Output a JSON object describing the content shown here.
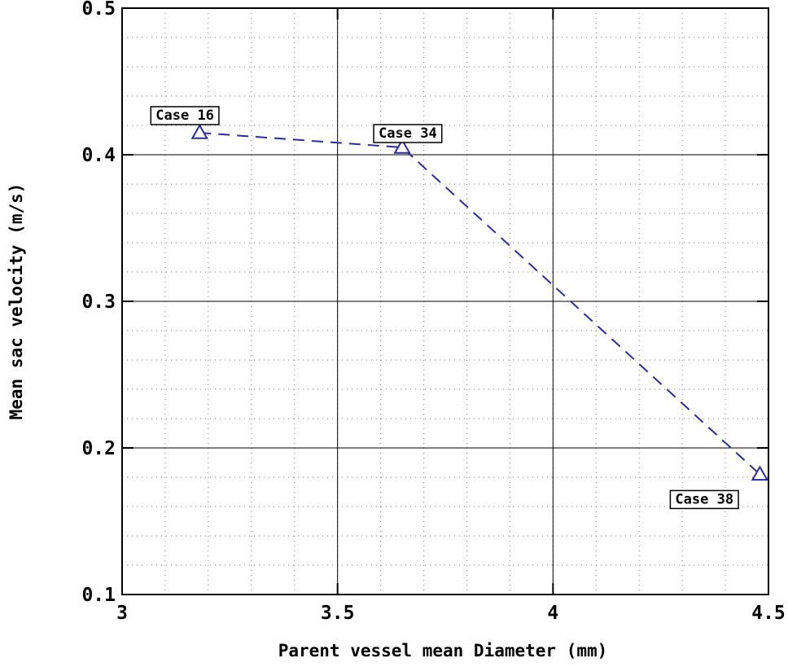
{
  "chart_data": {
    "type": "line",
    "xlabel": "Parent vessel mean Diameter (mm)",
    "ylabel": "Mean sac velocity (m/s)",
    "xlim": [
      3,
      4.5
    ],
    "ylim": [
      0.1,
      0.5
    ],
    "xticks": [
      3,
      3.5,
      4,
      4.5
    ],
    "xtick_labels": [
      "3",
      "3.5",
      "4",
      "4.5"
    ],
    "yticks": [
      0.1,
      0.2,
      0.3,
      0.4,
      0.5
    ],
    "ytick_labels": [
      "0.1",
      "0.2",
      "0.3",
      "0.4",
      "0.5"
    ],
    "grid": true,
    "minor_grid": true,
    "series": [
      {
        "x": [
          3.18,
          3.65,
          4.48
        ],
        "y": [
          0.415,
          0.405,
          0.182
        ],
        "color": "#2b2ba3",
        "line_style": "dashed",
        "marker": "triangle-open"
      }
    ],
    "annotations": [
      {
        "text": "Case 16",
        "x": 3.18,
        "y": 0.415,
        "placement": "above-left"
      },
      {
        "text": "Case 34",
        "x": 3.65,
        "y": 0.405,
        "placement": "above"
      },
      {
        "text": "Case 38",
        "x": 4.48,
        "y": 0.182,
        "placement": "below-left"
      }
    ]
  }
}
